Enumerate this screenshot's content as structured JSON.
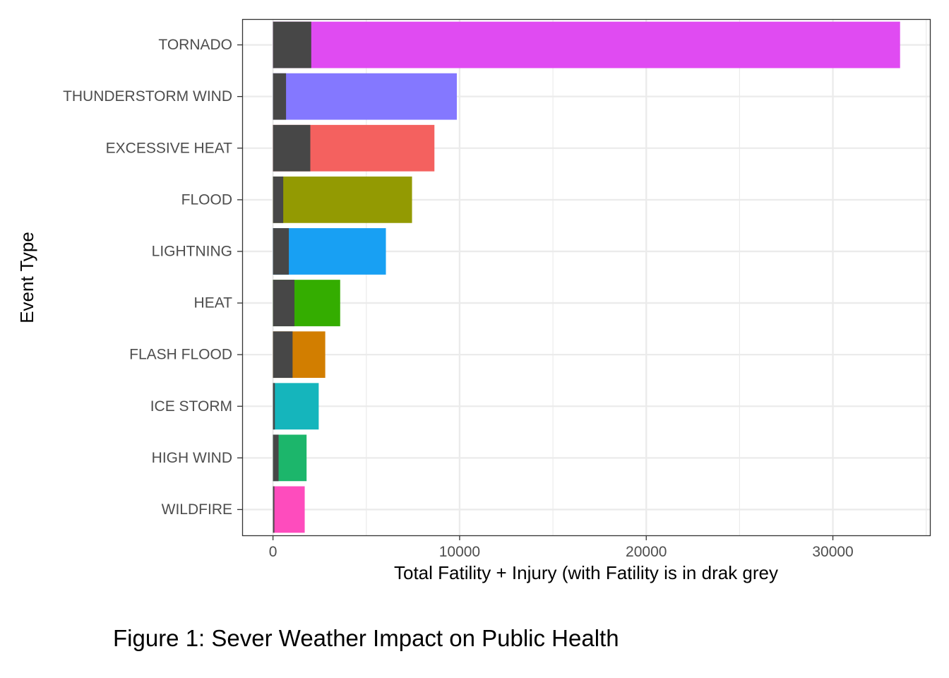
{
  "chart_data": {
    "type": "bar",
    "orientation": "horizontal",
    "stacked": true,
    "xlabel": "Total Fatility + Injury (with Fatility is in drak grey",
    "ylabel": "Event Type",
    "xlim": [
      -1650,
      35200
    ],
    "x_ticks": [
      0,
      10000,
      20000,
      30000
    ],
    "x_tick_labels": [
      "0",
      "10000",
      "20000",
      "30000"
    ],
    "grid": true,
    "legend": "none",
    "fatality_color": "#474747",
    "categories": [
      "TORNADO",
      "THUNDERSTORM WIND",
      "EXCESSIVE HEAT",
      "FLOOD",
      "LIGHTNING",
      "HEAT",
      "FLASH FLOOD",
      "ICE STORM",
      "HIGH WIND",
      "WILDFIRE"
    ],
    "fatalities": [
      2050,
      700,
      2000,
      550,
      850,
      1150,
      1050,
      100,
      300,
      75
    ],
    "totals": [
      33600,
      9850,
      8650,
      7450,
      6050,
      3600,
      2800,
      2450,
      1800,
      1700
    ],
    "colors": [
      "#E04BF2",
      "#8478FF",
      "#F4615F",
      "#939A02",
      "#18A0F3",
      "#34AD00",
      "#D27E00",
      "#15B5BC",
      "#1CB66B",
      "#FE4CBD"
    ]
  },
  "caption": "Figure 1: Sever Weather Impact on Public Health"
}
